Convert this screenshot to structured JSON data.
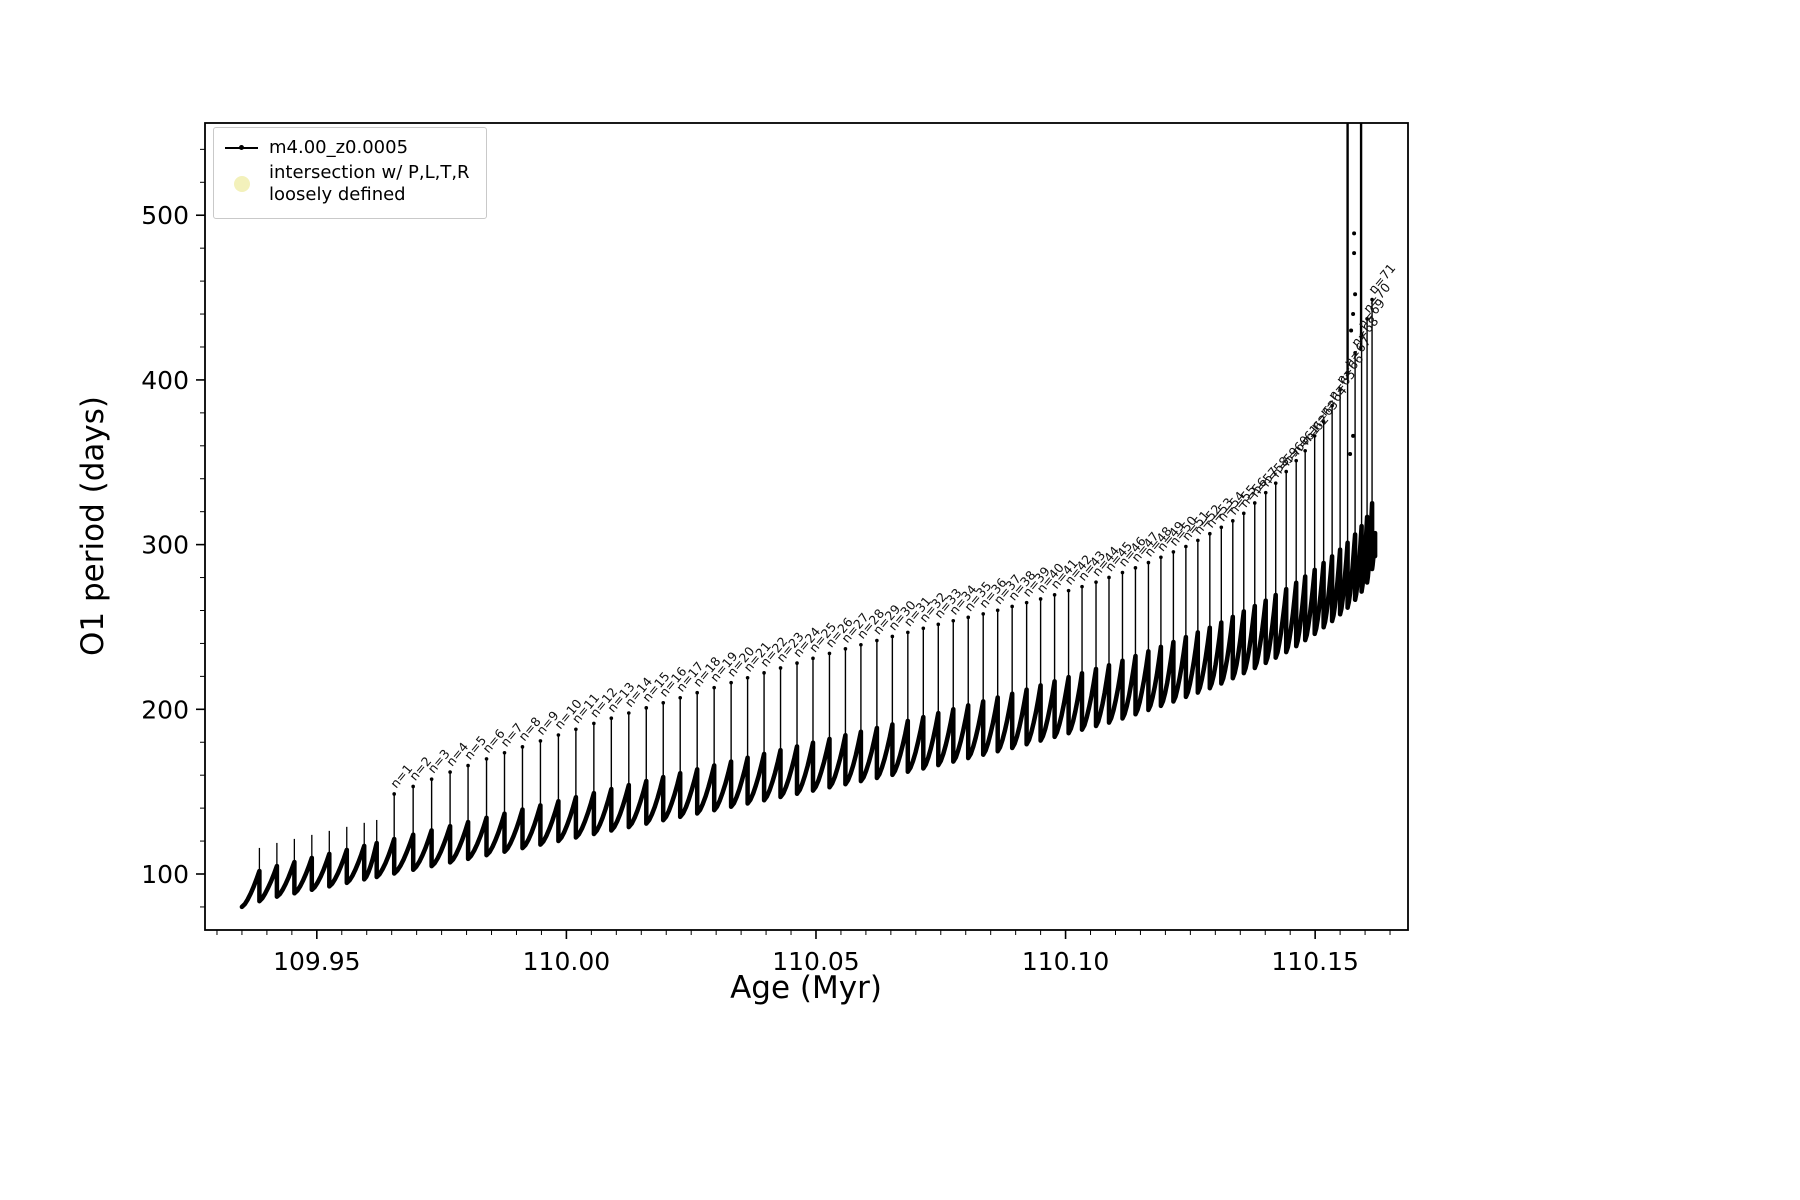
{
  "chart_data": {
    "type": "scatter",
    "title": "",
    "xlabel": "Age (Myr)",
    "ylabel": "O1 period (days)",
    "xlim": [
      109.9276,
      110.1686
    ],
    "ylim": [
      66,
      556
    ],
    "xticks": [
      109.95,
      110.0,
      110.05,
      110.1,
      110.15
    ],
    "xtick_labels": [
      "109.95",
      "110.00",
      "110.05",
      "110.10",
      "110.15"
    ],
    "yticks": [
      100,
      200,
      300,
      400,
      500
    ],
    "ytick_labels": [
      "100",
      "200",
      "300",
      "400",
      "500"
    ],
    "x_minor_step": 0.005,
    "y_minor_step": 20,
    "grid": false,
    "legend": {
      "position": "upper-left",
      "entries": [
        {
          "label": "m4.00_z0.0005",
          "marker": "point-line",
          "color": "#000000"
        },
        {
          "label_line1": "intersection w/ P,L,T,R",
          "label_line2": "loosely defined",
          "marker": "circle",
          "color": "#f3f1bb"
        }
      ]
    },
    "series": [
      {
        "name": "m4.00_z0.0005",
        "color": "#000000",
        "data_start_x": 109.935,
        "data_end_x": 110.162,
        "tooth_amp_start": 18,
        "tooth_amp_end": 40,
        "lower_envelope": [
          [
            109.935,
            80
          ],
          [
            109.94,
            85
          ],
          [
            109.945,
            88
          ],
          [
            109.95,
            91
          ],
          [
            109.955,
            94
          ],
          [
            109.96,
            97
          ],
          [
            109.965,
            100
          ],
          [
            109.97,
            103
          ],
          [
            109.975,
            106
          ],
          [
            109.98,
            109
          ],
          [
            109.985,
            112
          ],
          [
            109.99,
            115
          ],
          [
            109.995,
            118
          ],
          [
            110.0,
            121
          ],
          [
            110.01,
            127
          ],
          [
            110.02,
            133
          ],
          [
            110.03,
            139
          ],
          [
            110.04,
            145
          ],
          [
            110.05,
            151
          ],
          [
            110.06,
            157
          ],
          [
            110.07,
            163
          ],
          [
            110.08,
            170
          ],
          [
            110.09,
            177
          ],
          [
            110.1,
            185
          ],
          [
            110.11,
            193
          ],
          [
            110.12,
            203
          ],
          [
            110.13,
            214
          ],
          [
            110.14,
            228
          ],
          [
            110.145,
            236
          ],
          [
            110.15,
            246
          ],
          [
            110.154,
            255
          ],
          [
            110.157,
            263
          ],
          [
            110.159,
            270
          ],
          [
            110.161,
            280
          ],
          [
            110.162,
            293
          ]
        ],
        "upper_envelope": [
          [
            109.935,
            118
          ],
          [
            109.95,
            132
          ],
          [
            109.96,
            141
          ],
          [
            109.965,
            148
          ],
          [
            109.975,
            160
          ],
          [
            109.985,
            171
          ],
          [
            109.995,
            181
          ],
          [
            110.005,
            191
          ],
          [
            110.015,
            200
          ],
          [
            110.025,
            209
          ],
          [
            110.035,
            218
          ],
          [
            110.045,
            227
          ],
          [
            110.055,
            236
          ],
          [
            110.065,
            244
          ],
          [
            110.075,
            252
          ],
          [
            110.085,
            259
          ],
          [
            110.095,
            267
          ],
          [
            110.105,
            276
          ],
          [
            110.115,
            287
          ],
          [
            110.125,
            300
          ],
          [
            110.135,
            317
          ],
          [
            110.142,
            337
          ],
          [
            110.148,
            357
          ],
          [
            110.152,
            376
          ],
          [
            110.155,
            394
          ],
          [
            110.157,
            408
          ],
          [
            110.159,
            425
          ],
          [
            110.1605,
            438
          ],
          [
            110.1615,
            450
          ]
        ],
        "pre_teeth_x": [
          109.9385,
          109.942,
          109.9455,
          109.949,
          109.9525,
          109.956,
          109.9595,
          109.962
        ],
        "spike_x": [
          109.9655,
          109.9693,
          109.973,
          109.9767,
          109.9803,
          109.984,
          109.9876,
          109.9912,
          109.9948,
          109.9984,
          110.0019,
          110.0055,
          110.009,
          110.0125,
          110.016,
          110.0194,
          110.0228,
          110.0262,
          110.0296,
          110.033,
          110.0363,
          110.0396,
          110.0429,
          110.0462,
          110.0494,
          110.0527,
          110.0559,
          110.059,
          110.0622,
          110.0653,
          110.0684,
          110.0715,
          110.0745,
          110.0775,
          110.0805,
          110.0835,
          110.0864,
          110.0893,
          110.0922,
          110.095,
          110.0978,
          110.1006,
          110.1033,
          110.1061,
          110.1087,
          110.1114,
          110.114,
          110.1166,
          110.1191,
          110.1216,
          110.1241,
          110.1265,
          110.1289,
          110.1312,
          110.1335,
          110.1357,
          110.1379,
          110.1401,
          110.1421,
          110.1442,
          110.1462,
          110.148,
          110.1499,
          110.1517,
          110.1534,
          110.155,
          110.1565,
          110.158,
          110.1593,
          110.1604,
          110.1614
        ],
        "spike_labels": [
          "n=1",
          "n=2",
          "n=3",
          "n=4",
          "n=5",
          "n=6",
          "n=7",
          "n=8",
          "n=9",
          "n=10",
          "n=11",
          "n=12",
          "n=13",
          "n=14",
          "n=15",
          "n=16",
          "n=17",
          "n=18",
          "n=19",
          "n=20",
          "n=21",
          "n=22",
          "n=23",
          "n=24",
          "n=25",
          "n=26",
          "n=27",
          "n=28",
          "n=29",
          "n=30",
          "n=31",
          "n=32",
          "n=33",
          "n=34",
          "n=35",
          "n=36",
          "n=37",
          "n=38",
          "n=39",
          "n=40",
          "n=41",
          "n=42",
          "n=43",
          "n=44",
          "n=45",
          "n=46",
          "n=47",
          "n=48",
          "n=49",
          "n=50",
          "n=51",
          "n=52",
          "n=53",
          "n=54",
          "n=55",
          "n=56",
          "n=57",
          "n=58",
          "n=59",
          "n=60",
          "n=61",
          "n=62",
          "n=63",
          "n=64",
          "n=65",
          "n=66",
          "n=67",
          "n=68",
          "n=69",
          "n=70",
          "n=71"
        ],
        "tall_spikes": [
          {
            "x": 110.1565,
            "y0": 400,
            "y1": 556
          },
          {
            "x": 110.1592,
            "y0": 418,
            "y1": 556
          }
        ],
        "extra_points": [
          [
            110.1578,
            489
          ],
          [
            110.1578,
            477
          ],
          [
            110.158,
            452
          ],
          [
            110.1576,
            440
          ],
          [
            110.1572,
            430
          ],
          [
            110.1576,
            366
          ],
          [
            110.157,
            355
          ]
        ]
      }
    ]
  }
}
